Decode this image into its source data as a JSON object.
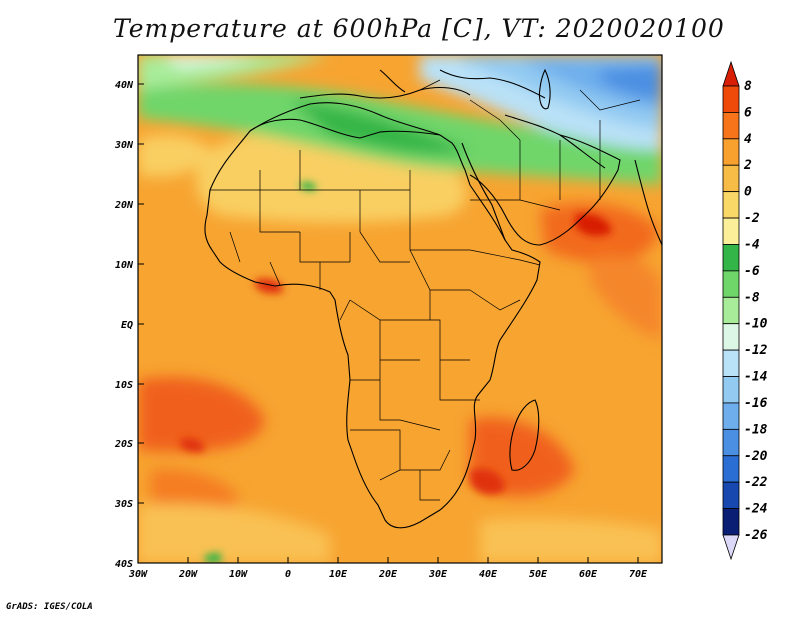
{
  "title": "Temperature at 600hPa [C], VT: 2020020100",
  "credit": "GrADS: IGES/COLA",
  "map": {
    "lat_labels": [
      "40N",
      "30N",
      "20N",
      "10N",
      "EQ",
      "10S",
      "20S",
      "30S",
      "40S"
    ],
    "lon_labels": [
      "30W",
      "20W",
      "10W",
      "0",
      "10E",
      "20E",
      "30E",
      "40E",
      "50E",
      "60E",
      "70E"
    ],
    "lat_range": [
      -40,
      45
    ],
    "lon_range": [
      -30,
      75
    ]
  },
  "colorbar": {
    "labels": [
      "8",
      "6",
      "4",
      "2",
      "0",
      "-2",
      "-4",
      "-6",
      "-8",
      "-10",
      "-12",
      "-14",
      "-16",
      "-18",
      "-20",
      "-22",
      "-24",
      "-26"
    ],
    "colors": [
      "#d81e05",
      "#f04a0a",
      "#f7741a",
      "#f9a12e",
      "#f7bc46",
      "#fad868",
      "#fbef9a",
      "#34b547",
      "#6fd66a",
      "#a8ec9a",
      "#ddf7e6",
      "#b9e1f7",
      "#93caf2",
      "#6eaeec",
      "#4b8fe2",
      "#2a6ed4",
      "#1648b0",
      "#0a1f74",
      "#dcd8f7"
    ]
  }
}
